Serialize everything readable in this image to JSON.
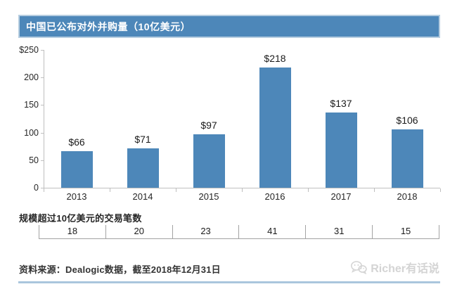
{
  "header": {
    "title": "中国已公布对外并购量（10亿美元）"
  },
  "chart_data": {
    "type": "bar",
    "title": "中国已公布对外并购量（10亿美元）",
    "categories": [
      "2013",
      "2014",
      "2015",
      "2016",
      "2017",
      "2018"
    ],
    "values": [
      66,
      71,
      97,
      218,
      137,
      106
    ],
    "bar_labels": [
      "$66",
      "$71",
      "$97",
      "$218",
      "$137",
      "$106"
    ],
    "ylim": [
      0,
      250
    ],
    "yticks": [
      {
        "value": 250,
        "label": "$250"
      },
      {
        "value": 200,
        "label": "200"
      },
      {
        "value": 150,
        "label": "150"
      },
      {
        "value": 100,
        "label": "100"
      },
      {
        "value": 50,
        "label": "50"
      },
      {
        "value": 0,
        "label": "0"
      }
    ],
    "grid": false,
    "legend": "none",
    "bar_color": "#4d87b9",
    "axis_color": "#bfbfbf"
  },
  "deals_row": {
    "label": "规模超过10亿美元的交易笔数",
    "values": [
      "18",
      "20",
      "23",
      "41",
      "31",
      "15"
    ]
  },
  "footer": {
    "source": "资料来源：Dealogic数据，截至2018年12月31日",
    "watermark": "Richer有话说"
  },
  "colors": {
    "accent": "#4d87b9",
    "divider": "#aac6dd",
    "watermark_gray": "#d4d4d4"
  }
}
